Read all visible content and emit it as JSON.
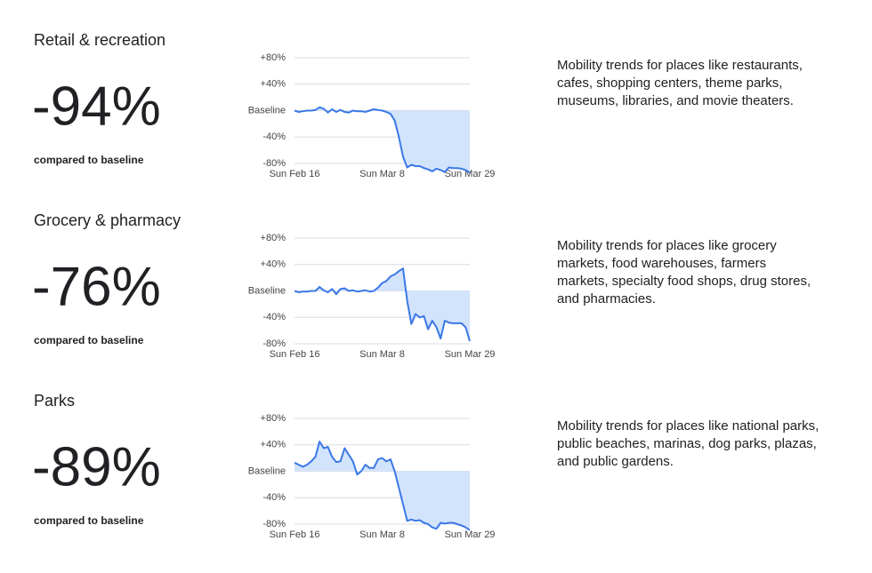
{
  "chart_data": [
    {
      "type": "line",
      "title": "Retail & recreation",
      "headline": "-94%",
      "caption": "compared to baseline",
      "description": [
        "Mobility trends for places like restaurants,",
        "cafes, shopping centers, theme parks,",
        "museums, libraries, and movie theaters."
      ],
      "categories": [
        "Sun Feb 16",
        null,
        null,
        null,
        null,
        null,
        null,
        null,
        null,
        null,
        null,
        null,
        null,
        null,
        null,
        null,
        null,
        null,
        null,
        null,
        null,
        "Sun Mar 8",
        null,
        null,
        null,
        null,
        null,
        null,
        null,
        null,
        null,
        null,
        null,
        null,
        null,
        null,
        null,
        null,
        null,
        null,
        null,
        null,
        "Sun Mar 29"
      ],
      "values": [
        0,
        -2,
        -1,
        0,
        0,
        1,
        5,
        3,
        -3,
        2,
        -2,
        1,
        -2,
        -3,
        0,
        -1,
        -1,
        -2,
        0,
        2,
        1,
        0,
        -2,
        -5,
        -15,
        -40,
        -70,
        -86,
        -82,
        -84,
        -84,
        -87,
        -89,
        -92,
        -88,
        -90,
        -93,
        -86,
        -87,
        -87,
        -88,
        -90,
        -94
      ],
      "color": "#3b78e7",
      "fill": "#d2e3fc",
      "ylim": [
        -80,
        80
      ],
      "yticks": [
        {
          "value": 80,
          "label": "+80%"
        },
        {
          "value": 40,
          "label": "+40%"
        },
        {
          "value": 0,
          "label": "Baseline"
        },
        {
          "value": -40,
          "label": "-40%"
        },
        {
          "value": -80,
          "label": "-80%"
        }
      ],
      "grid": true
    },
    {
      "type": "line",
      "title": "Grocery & pharmacy",
      "headline": "-76%",
      "caption": "compared to baseline",
      "description": [
        "Mobility trends for places like grocery",
        "markets, food warehouses, farmers",
        "markets, specialty food shops, drug stores,",
        "and pharmacies."
      ],
      "categories": [
        "Sun Feb 16",
        null,
        null,
        null,
        null,
        null,
        null,
        null,
        null,
        null,
        null,
        null,
        null,
        null,
        null,
        null,
        null,
        null,
        null,
        null,
        null,
        "Sun Mar 8",
        null,
        null,
        null,
        null,
        null,
        null,
        null,
        null,
        null,
        null,
        null,
        null,
        null,
        null,
        null,
        null,
        null,
        null,
        null,
        null,
        "Sun Mar 29"
      ],
      "values": [
        0,
        -2,
        -1,
        -1,
        0,
        0,
        6,
        1,
        -2,
        3,
        -5,
        3,
        4,
        0,
        1,
        -1,
        0,
        1,
        -1,
        0,
        5,
        12,
        15,
        22,
        25,
        30,
        34,
        -15,
        -50,
        -35,
        -40,
        -38,
        -58,
        -45,
        -55,
        -72,
        -45,
        -48,
        -49,
        -49,
        -49,
        -55,
        -76
      ],
      "color": "#3b78e7",
      "fill": "#d2e3fc",
      "ylim": [
        -80,
        80
      ],
      "yticks": [
        {
          "value": 80,
          "label": "+80%"
        },
        {
          "value": 40,
          "label": "+40%"
        },
        {
          "value": 0,
          "label": "Baseline"
        },
        {
          "value": -40,
          "label": "-40%"
        },
        {
          "value": -80,
          "label": "-80%"
        }
      ],
      "grid": true
    },
    {
      "type": "line",
      "title": "Parks",
      "headline": "-89%",
      "caption": "compared to baseline",
      "description": [
        "Mobility trends for places like national parks,",
        "public beaches, marinas, dog parks, plazas,",
        "and public gardens."
      ],
      "categories": [
        "Sun Feb 16",
        null,
        null,
        null,
        null,
        null,
        null,
        null,
        null,
        null,
        null,
        null,
        null,
        null,
        null,
        null,
        null,
        null,
        null,
        null,
        null,
        "Sun Mar 8",
        null,
        null,
        null,
        null,
        null,
        null,
        null,
        null,
        null,
        null,
        null,
        null,
        null,
        null,
        null,
        null,
        null,
        null,
        null,
        null,
        "Sun Mar 29"
      ],
      "values": [
        13,
        10,
        7,
        10,
        15,
        22,
        45,
        35,
        37,
        22,
        14,
        15,
        35,
        25,
        15,
        -5,
        0,
        10,
        5,
        5,
        18,
        20,
        15,
        18,
        0,
        -25,
        -50,
        -75,
        -73,
        -75,
        -74,
        -78,
        -80,
        -85,
        -87,
        -78,
        -79,
        -78,
        -78,
        -80,
        -82,
        -85,
        -89
      ],
      "color": "#3b78e7",
      "fill": "#d2e3fc",
      "ylim": [
        -80,
        80
      ],
      "yticks": [
        {
          "value": 80,
          "label": "+80%"
        },
        {
          "value": 40,
          "label": "+40%"
        },
        {
          "value": 0,
          "label": "Baseline"
        },
        {
          "value": -40,
          "label": "-40%"
        },
        {
          "value": -80,
          "label": "-80%"
        }
      ],
      "grid": true
    }
  ]
}
